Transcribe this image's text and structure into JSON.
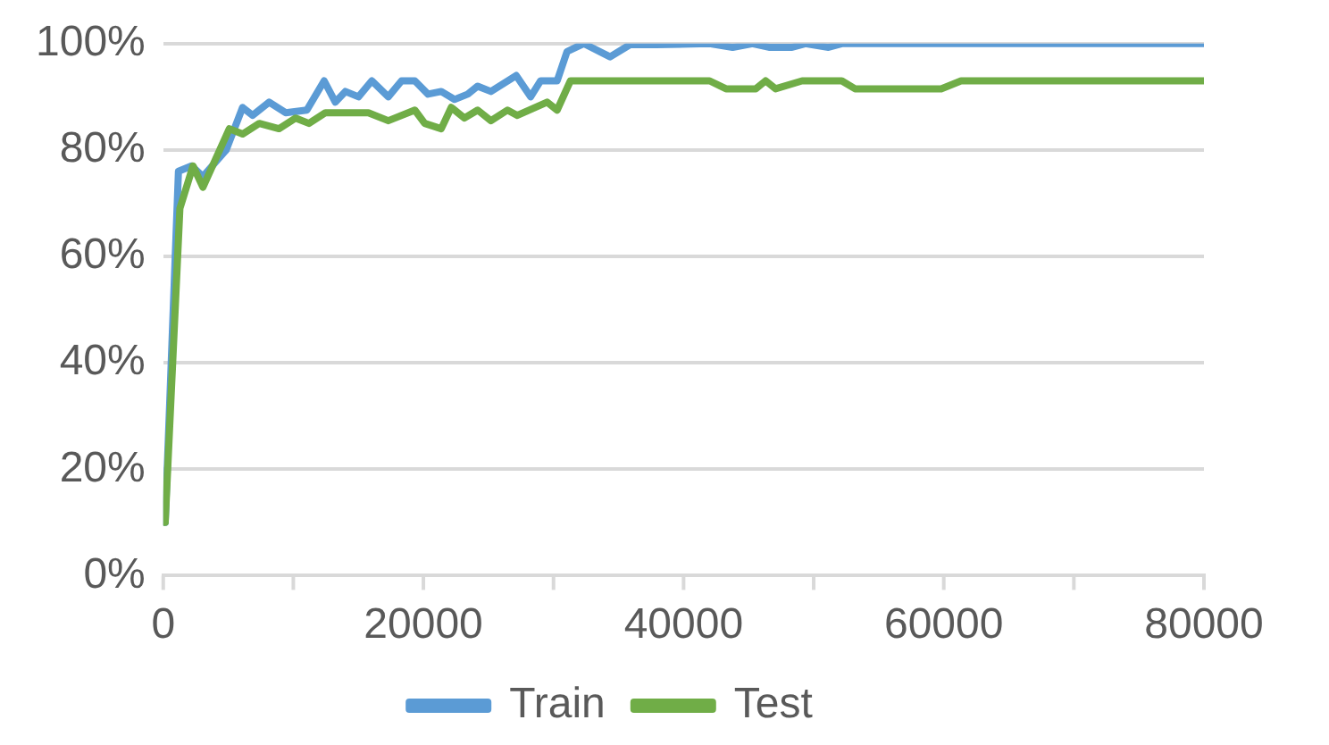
{
  "chart_data": {
    "type": "line",
    "x": [
      150,
      1170,
      2180,
      3050,
      4840,
      6100,
      6870,
      8140,
      9410,
      11040,
      12370,
      13230,
      14000,
      15010,
      16030,
      17300,
      18320,
      19340,
      20350,
      21370,
      22390,
      23410,
      24170,
      25190,
      27130,
      28240,
      29010,
      30280,
      31040,
      32320,
      34350,
      35880,
      37910,
      42000,
      43770,
      45300,
      46560,
      48340,
      49360,
      51140,
      52160,
      80000
    ],
    "series": [
      {
        "name": "Train",
        "color": "#5b9bd5",
        "values": [
          10,
          76,
          77,
          75,
          80,
          88,
          86.5,
          89,
          87,
          87.5,
          93,
          89,
          91,
          90,
          93,
          90,
          93,
          93,
          90.5,
          91,
          89.5,
          90.5,
          92,
          91,
          94,
          90,
          93,
          93,
          98.5,
          100,
          97.5,
          99.8,
          99.8,
          100,
          99.3,
          100,
          99.3,
          99.3,
          100,
          99.3,
          100,
          100
        ]
      },
      {
        "name": "Test",
        "color": "#70ad47",
        "x": [
          150,
          1280,
          2290,
          3050,
          5080,
          6100,
          7380,
          8900,
          10180,
          11200,
          12470,
          15770,
          17300,
          19340,
          20100,
          21370,
          22140,
          23150,
          24170,
          25190,
          26460,
          27220,
          29510,
          30280,
          31300,
          42000,
          43260,
          45550,
          46300,
          47070,
          49110,
          52160,
          53180,
          59800,
          61330,
          80000
        ],
        "values": [
          10,
          69,
          77,
          73,
          84,
          83,
          85,
          84,
          86,
          85,
          87,
          87,
          85.5,
          87.5,
          85,
          84,
          88,
          86,
          87.5,
          85.5,
          87.5,
          86.5,
          89,
          87.5,
          93,
          93,
          91.5,
          91.5,
          93,
          91.5,
          93,
          93,
          91.5,
          91.5,
          93,
          93
        ]
      }
    ],
    "xlim": [
      0,
      80000
    ],
    "xticks": [
      0,
      {
        "value": 10000,
        "label": null
      },
      20000,
      {
        "value": 30000,
        "label": null
      },
      40000,
      {
        "value": 50000,
        "label": null
      },
      60000,
      {
        "value": 70000,
        "label": null
      },
      80000
    ],
    "ylim": [
      0,
      100
    ],
    "yticks": [
      {
        "value": 0,
        "label": "0%"
      },
      {
        "value": 20,
        "label": "20%"
      },
      {
        "value": 40,
        "label": "40%"
      },
      {
        "value": 60,
        "label": "60%"
      },
      {
        "value": 80,
        "label": "80%"
      },
      {
        "value": 100,
        "label": "100%"
      }
    ],
    "grid": "y",
    "legend": "bottom",
    "marker": "none",
    "line_style": "solid"
  }
}
